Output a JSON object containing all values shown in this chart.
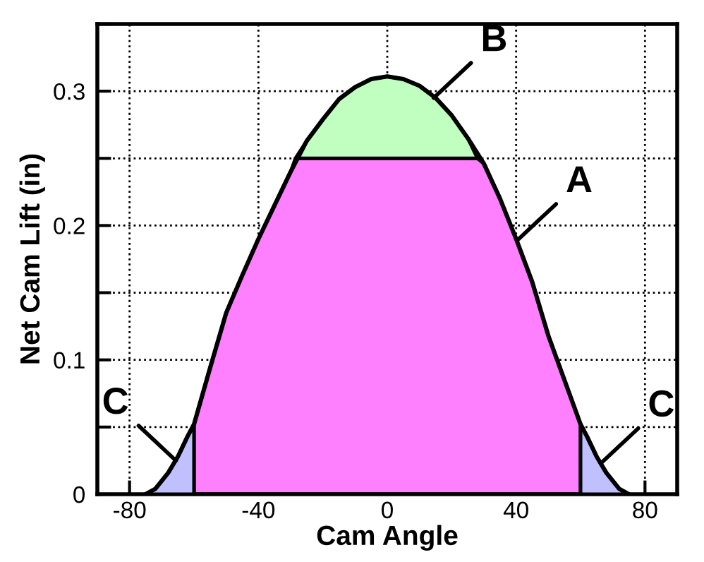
{
  "chart_data": {
    "type": "area",
    "xlabel": "Cam Angle",
    "ylabel": "Net Cam Lift (in)",
    "xlim": [
      -90,
      90
    ],
    "xticks": [
      -80,
      -40,
      0,
      40,
      80
    ],
    "ylim": [
      0,
      0.35
    ],
    "yticks": [
      0,
      {
        "value": 0.05,
        "label": null
      },
      0.1,
      {
        "value": 0.15,
        "label": null
      },
      0.2,
      {
        "value": 0.25,
        "label": null
      },
      0.3,
      {
        "value": 0.35,
        "label": null
      }
    ],
    "grid": true,
    "series": [
      {
        "color": "#ff80ff",
        "x": [
          -60,
          -55,
          -50,
          -45,
          -40,
          -35,
          -30,
          -28.5,
          28,
          30,
          35,
          40,
          45,
          50,
          55,
          60
        ],
        "values": [
          0.052,
          0.094,
          0.135,
          0.163,
          0.19,
          0.215,
          0.24,
          0.25,
          0.25,
          0.246,
          0.22,
          0.19,
          0.158,
          0.118,
          0.085,
          0.052
        ]
      },
      {
        "color": "#c0ffc0",
        "x": [
          -28.5,
          -25,
          -20,
          -15,
          -10,
          -5,
          0,
          5,
          10,
          15,
          20,
          25,
          28
        ],
        "values": [
          0.25,
          0.263,
          0.279,
          0.294,
          0.303,
          0.309,
          0.311,
          0.309,
          0.304,
          0.295,
          0.282,
          0.265,
          0.25
        ]
      },
      {
        "color": "#c0c0ff",
        "x": [
          -75,
          -72,
          -68,
          -65,
          -62,
          -60
        ],
        "values": [
          0,
          0.004,
          0.016,
          0.028,
          0.043,
          0.052
        ]
      },
      {
        "color": "#c0c0ff",
        "x": [
          60,
          62,
          65,
          68,
          72,
          75
        ],
        "values": [
          0.052,
          0.043,
          0.028,
          0.016,
          0.004,
          0
        ]
      },
      {
        "type": "line",
        "color": "#000000",
        "x": [
          -75,
          -72,
          -68,
          -65,
          -62,
          -60,
          -55,
          -50,
          -45,
          -40,
          -35,
          -30,
          -25,
          -20,
          -15,
          -10,
          -5,
          0,
          5,
          10,
          15,
          20,
          25,
          30,
          35,
          40,
          45,
          50,
          55,
          60,
          62,
          65,
          68,
          72,
          75
        ],
        "values": [
          0,
          0.004,
          0.016,
          0.028,
          0.043,
          0.052,
          0.094,
          0.135,
          0.163,
          0.19,
          0.215,
          0.24,
          0.263,
          0.279,
          0.294,
          0.303,
          0.309,
          0.311,
          0.309,
          0.304,
          0.295,
          0.282,
          0.265,
          0.246,
          0.22,
          0.19,
          0.158,
          0.118,
          0.085,
          0.052,
          0.043,
          0.028,
          0.016,
          0.004,
          0
        ]
      }
    ],
    "annotations": [
      {
        "text": "B",
        "x": 14.4,
        "y": 0.295
      },
      {
        "text": "A",
        "x": 40.8,
        "y": 0.19
      },
      {
        "text": "C",
        "x": -65.6,
        "y": 0.025
      },
      {
        "text": "C",
        "x": 66.3,
        "y": 0.023
      }
    ]
  }
}
